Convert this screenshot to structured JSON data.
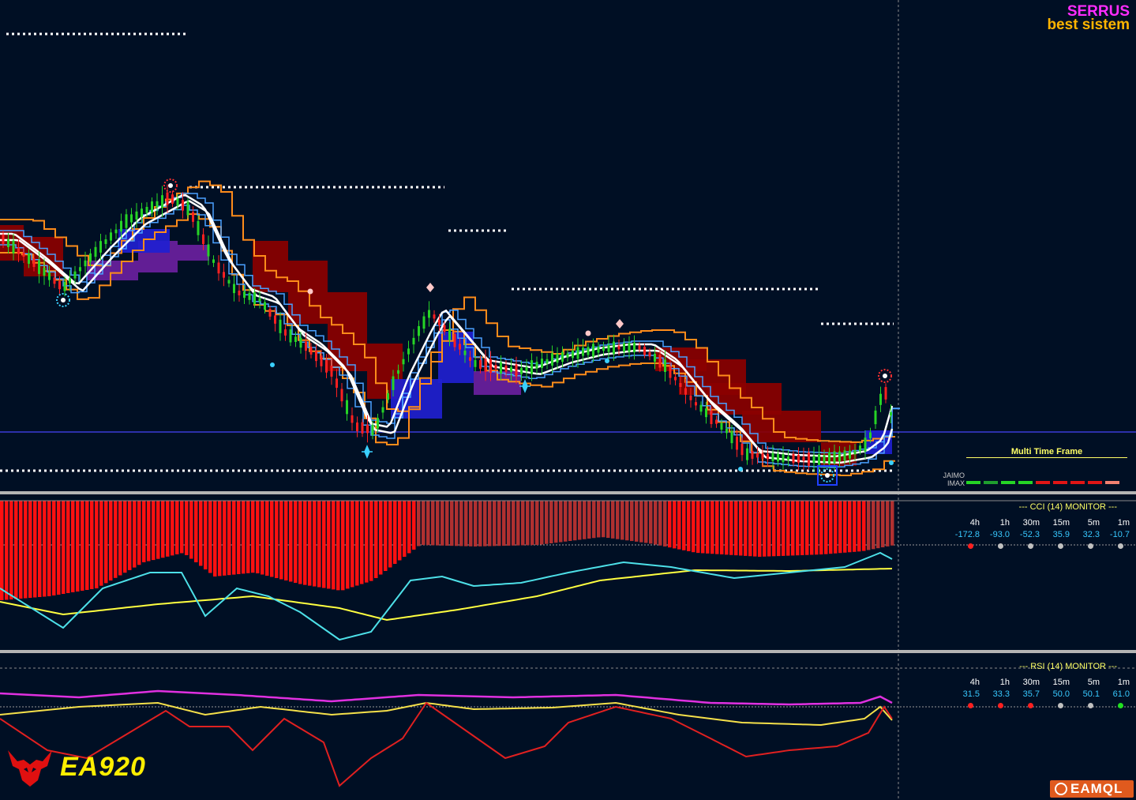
{
  "brand": {
    "title": "SERRUS",
    "subtitle": "best sistem"
  },
  "multi_time_frame": {
    "title": "Multi Time Frame",
    "label": "JAIMO\nIMAX",
    "bar_colors": [
      "#25d425",
      "#1f9e2e",
      "#25d425",
      "#25d425",
      "#e01515",
      "#e01515",
      "#e01515",
      "#e01515",
      "#f08070"
    ]
  },
  "cci_monitor": {
    "title": "--- CCI (14) MONITOR ---",
    "timeframes": [
      "4h",
      "1h",
      "30m",
      "15m",
      "5m",
      "1m"
    ],
    "values": [
      "-172.8",
      "-93.0",
      "-52.3",
      "35.9",
      "32.3",
      "-10.7"
    ],
    "dot_colors": [
      "#ff2020",
      "#c0c0c0",
      "#c0c0c0",
      "#c0c0c0",
      "#c0c0c0",
      "#c0c0c0"
    ]
  },
  "rsi_monitor": {
    "title": "--- RSI (14) MONITOR ---",
    "timeframes": [
      "4h",
      "1h",
      "30m",
      "15m",
      "5m",
      "1m"
    ],
    "values": [
      "31.5",
      "33.3",
      "35.7",
      "50.0",
      "50.1",
      "61.0"
    ],
    "dot_colors": [
      "#ff2020",
      "#ff2020",
      "#ff2020",
      "#c0c0c0",
      "#c0c0c0",
      "#20e020"
    ]
  },
  "logos": {
    "left": "EA920",
    "right": "EAMQL"
  },
  "colors": {
    "background": "#000f24",
    "bull": "#26d426",
    "bear": "#ff2020",
    "cloud_bear": "#8b0000",
    "cloud_bull": "#2020d0",
    "cloud_neutral": "#6a1fa0",
    "orange_line": "#ff8c1a",
    "blue_line": "#4aa0ff",
    "white_line": "#ffffff",
    "cci_line": "#4de0e8",
    "signal_line": "#ffff40",
    "rsi_magenta": "#e030e0",
    "rsi_red": "#e02020",
    "rsi_yellow": "#f5e04a"
  }
}
